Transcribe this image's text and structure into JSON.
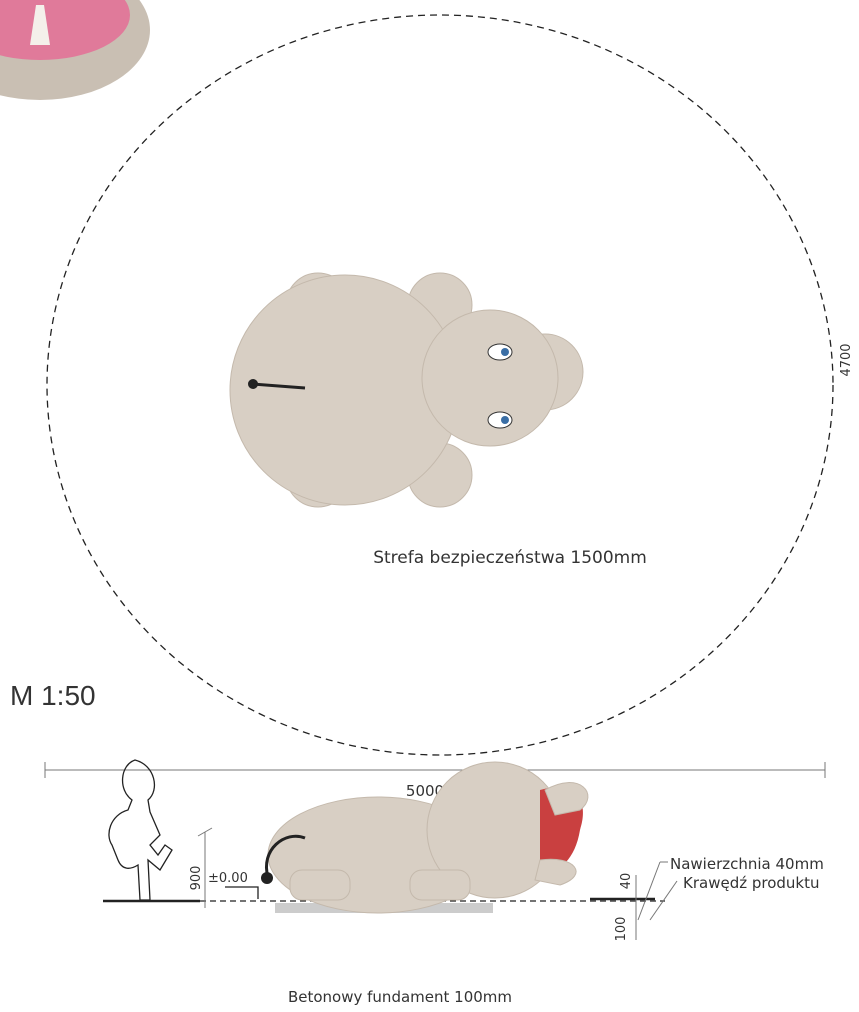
{
  "scale": "M 1:50",
  "plan": {
    "safety_zone": "Strefa bezpieczeństwa 1500mm",
    "depth": "4700",
    "width": "5000"
  },
  "elevation": {
    "height": "900",
    "level": "±0.00",
    "surface": "Nawierzchnia 40mm",
    "edge": "Krawędź produktu",
    "surface_thickness": "40",
    "foundation_thickness": "100",
    "foundation": "Betonowy fundament 100mm"
  }
}
